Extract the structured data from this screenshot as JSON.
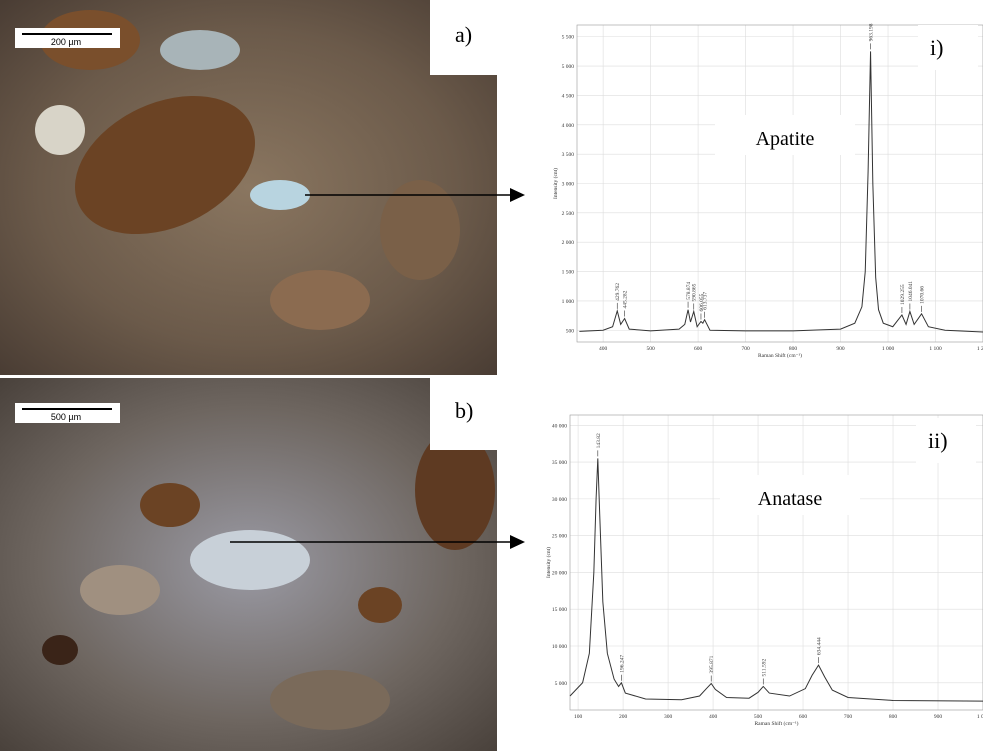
{
  "panels": [
    {
      "label": "a)",
      "scale_bar": "200 µm"
    },
    {
      "label": "b)",
      "scale_bar": "500 µm"
    }
  ],
  "chart_data": [
    {
      "type": "line",
      "label": "i)",
      "annotation": "Apatite",
      "x_label": "Raman Shift (cm⁻¹)",
      "y_label": "Intensity (cnt)",
      "grid": true,
      "color": "#333333",
      "x": [
        350,
        400,
        420,
        429.762,
        437,
        445.282,
        455,
        500,
        560,
        572,
        578.874,
        584,
        590.865,
        598,
        606.055,
        610,
        613.737,
        625,
        700,
        800,
        900,
        930,
        945,
        952,
        958,
        963.198,
        968,
        974,
        980,
        990,
        1010,
        1029.255,
        1038,
        1046.041,
        1055,
        1070.66,
        1085,
        1120,
        1200
      ],
      "values": [
        480,
        500,
        560,
        830,
        600,
        700,
        520,
        490,
        520,
        600,
        850,
        640,
        820,
        560,
        650,
        620,
        680,
        500,
        490,
        490,
        520,
        620,
        900,
        1500,
        3200,
        5250,
        3000,
        1400,
        850,
        620,
        560,
        760,
        600,
        820,
        600,
        780,
        560,
        500,
        470
      ],
      "peaks": [
        429.762,
        445.282,
        578.874,
        590.865,
        606.055,
        613.737,
        963.198,
        1029.255,
        1046.041,
        1070.66
      ],
      "xlim": [
        345,
        1200
      ],
      "ylim": [
        300,
        5700
      ],
      "xticks": [
        400,
        500,
        600,
        700,
        800,
        900,
        {
          "value": 1000,
          "label": "1 000"
        },
        {
          "value": 1100,
          "label": "1 100"
        },
        {
          "value": 1200,
          "label": "1 200"
        }
      ],
      "yticks": [
        500,
        {
          "value": 1000,
          "label": "1 000"
        },
        {
          "value": 1500,
          "label": "1 500"
        },
        {
          "value": 2000,
          "label": "2 000"
        },
        {
          "value": 2500,
          "label": "2 500"
        },
        {
          "value": 3000,
          "label": "3 000"
        },
        {
          "value": 3500,
          "label": "3 500"
        },
        {
          "value": 4000,
          "label": "4 000"
        },
        {
          "value": 4500,
          "label": "4 500"
        },
        {
          "value": 5000,
          "label": "5 000"
        },
        {
          "value": 5500,
          "label": "5 500"
        }
      ]
    },
    {
      "type": "line",
      "label": "ii)",
      "annotation": "Anatase",
      "x_label": "Raman Shift (cm⁻¹)",
      "y_label": "Intensity (cnt)",
      "grid": true,
      "color": "#333333",
      "x": [
        82,
        110,
        125,
        135,
        140,
        143.82,
        148,
        155,
        165,
        180,
        190,
        196.247,
        205,
        250,
        330,
        370,
        385,
        395.871,
        405,
        430,
        480,
        500,
        511.592,
        525,
        570,
        605,
        620,
        634.444,
        648,
        665,
        700,
        800,
        1000
      ],
      "values": [
        3200,
        5000,
        9000,
        20000,
        30000,
        35500,
        28000,
        16000,
        9000,
        5500,
        4500,
        5000,
        3600,
        2800,
        2700,
        3200,
        4200,
        4900,
        4100,
        3000,
        2900,
        3700,
        4500,
        3600,
        3200,
        4200,
        6000,
        7400,
        5800,
        4000,
        3000,
        2600,
        2500
      ],
      "peaks": [
        143.82,
        196.247,
        395.871,
        511.592,
        634.444
      ],
      "xlim": [
        82,
        1000
      ],
      "ylim": [
        1300,
        41400
      ],
      "xticks": [
        100,
        200,
        300,
        400,
        500,
        600,
        700,
        800,
        900,
        {
          "value": 1000,
          "label": "1 000"
        }
      ],
      "yticks": [
        {
          "value": 5000,
          "label": "5 000"
        },
        {
          "value": 10000,
          "label": "10 000"
        },
        {
          "value": 15000,
          "label": "15 000"
        },
        {
          "value": 20000,
          "label": "20 000"
        },
        {
          "value": 25000,
          "label": "25 000"
        },
        {
          "value": 30000,
          "label": "30 000"
        },
        {
          "value": 35000,
          "label": "35 000"
        },
        {
          "value": 40000,
          "label": "40 000"
        }
      ]
    }
  ]
}
